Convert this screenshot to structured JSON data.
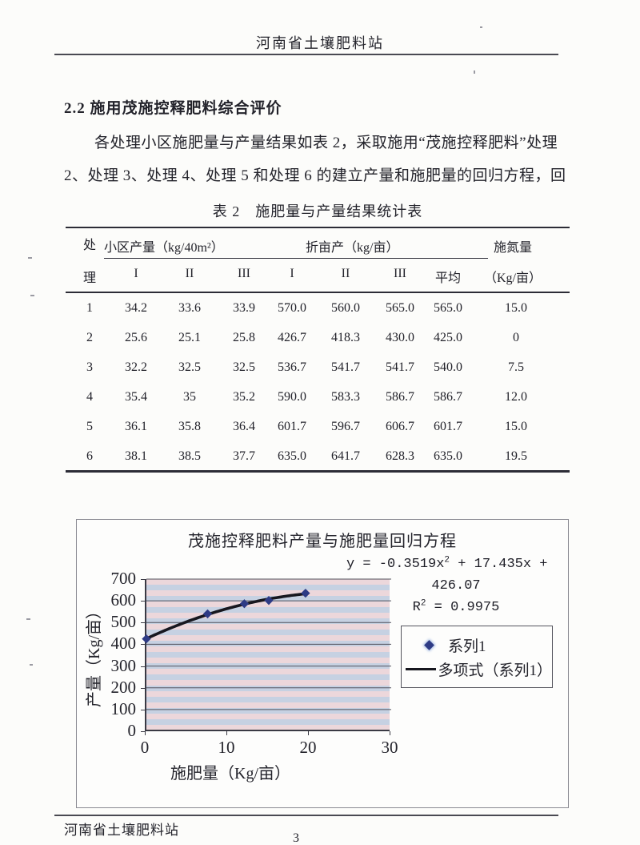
{
  "header": {
    "title": "河南省土壤肥料站"
  },
  "section": {
    "heading": "2.2 施用茂施控释肥料综合评价"
  },
  "paragraph": {
    "line1": "各处理小区施肥量与产量结果如表 2，采取施用“茂施控释肥料”处理",
    "line2": "2、处理 3、处理 4、处理 5 和处理 6 的建立产量和施肥量的回归方程，回"
  },
  "table": {
    "caption": "表 2　施肥量与产量结果统计表",
    "header": {
      "row_label_line1": "处",
      "row_label_line2": "理",
      "group1": "小区产量（kg/40m²）",
      "group2": "折亩产（kg/亩）",
      "group3_line1": "施氮量",
      "group3_line2": "（Kg/亩）",
      "subcols": [
        "I",
        "II",
        "III",
        "I",
        "II",
        "III",
        "平均"
      ]
    },
    "rows": [
      [
        "1",
        "34.2",
        "33.6",
        "33.9",
        "570.0",
        "560.0",
        "565.0",
        "565.0",
        "15.0"
      ],
      [
        "2",
        "25.6",
        "25.1",
        "25.8",
        "426.7",
        "418.3",
        "430.0",
        "425.0",
        "0"
      ],
      [
        "3",
        "32.2",
        "32.5",
        "32.5",
        "536.7",
        "541.7",
        "541.7",
        "540.0",
        "7.5"
      ],
      [
        "4",
        "35.4",
        "35",
        "35.2",
        "590.0",
        "583.3",
        "586.7",
        "586.7",
        "12.0"
      ],
      [
        "5",
        "36.1",
        "35.8",
        "36.4",
        "601.7",
        "596.7",
        "606.7",
        "601.7",
        "15.0"
      ],
      [
        "6",
        "38.1",
        "38.5",
        "37.7",
        "635.0",
        "641.7",
        "628.3",
        "635.0",
        "19.5"
      ]
    ]
  },
  "chart_data": {
    "type": "scatter",
    "title": "茂施控释肥料产量与施肥量回归方程",
    "xlabel": "施肥量（Kg/亩）",
    "ylabel": "产量（Kg/亩）",
    "xlim": [
      0,
      30
    ],
    "ylim": [
      0,
      700
    ],
    "x_ticks": [
      0,
      10,
      20,
      30
    ],
    "y_ticks": [
      0,
      100,
      200,
      300,
      400,
      500,
      600,
      700
    ],
    "grid": true,
    "series": [
      {
        "name": "系列1",
        "x": [
          0,
          7.5,
          12,
          15,
          19.5
        ],
        "y": [
          425.0,
          540.0,
          586.7,
          601.7,
          635.0
        ]
      }
    ],
    "trendline": {
      "name": "多项式（系列1）",
      "form": "quadratic",
      "a": -0.3519,
      "b": 17.435,
      "c": 426.07,
      "r_squared": 0.9975,
      "x_range": [
        0,
        19.5
      ]
    },
    "equation": {
      "line1_pre": "y = -0.3519x",
      "line1_sup": "2",
      "line1_post": " + 17.435x +",
      "line2": "426.07",
      "r2_pre": "R",
      "r2_sup": "2",
      "r2_post": " = 0.9975"
    },
    "legend": {
      "position": "right",
      "entries": [
        {
          "marker": "diamond",
          "label": "系列1"
        },
        {
          "marker": "line",
          "label": "多项式（系列1）"
        }
      ]
    },
    "colors": {
      "band_pink": "#ecd7db",
      "band_blue": "#c6d1e2",
      "gridline": "#52525e",
      "curve": "#17171f",
      "marker": "#2e3b85"
    }
  },
  "footer": {
    "org": "河南省土壤肥料站",
    "page_number": "3"
  }
}
